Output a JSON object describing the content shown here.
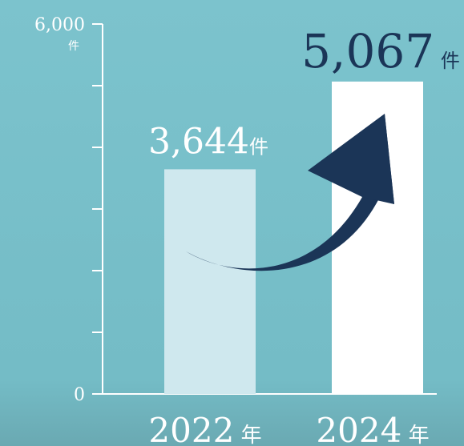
{
  "chart_data": {
    "type": "bar",
    "categories": [
      "2022",
      "2024"
    ],
    "category_unit": "年",
    "values": [
      3644,
      5067
    ],
    "value_labels": [
      "3,644",
      "5,067"
    ],
    "value_unit": "件",
    "ylim": [
      0,
      6000
    ],
    "y_tick_count": 6,
    "y_tick_labels": {
      "max": "6,000",
      "min": "0",
      "unit": "件"
    },
    "grid": false,
    "bar_colors": [
      "#cfe8ee",
      "#ffffff"
    ],
    "axis_color": "#ffffff",
    "label_colors": [
      "#ffffff",
      "#1b3557"
    ],
    "arrow_color": "#1b3557"
  }
}
